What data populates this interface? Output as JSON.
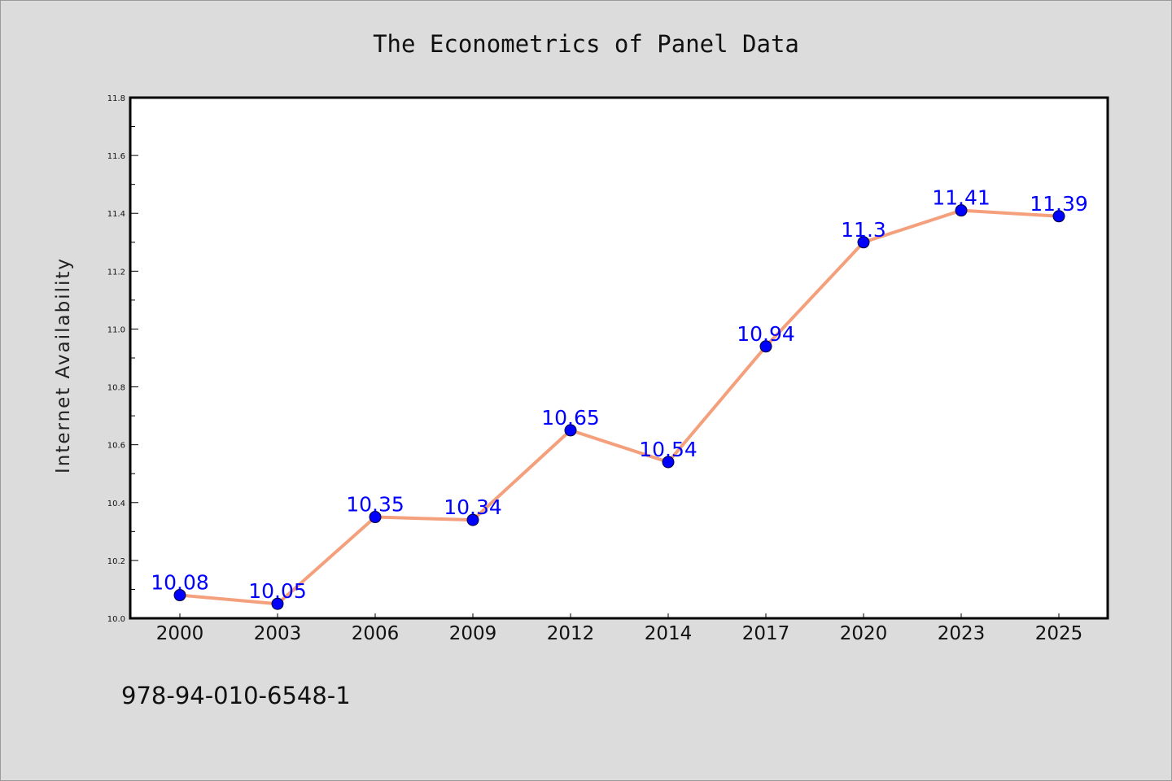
{
  "chart_data": {
    "type": "line",
    "title": "The Econometrics of Panel Data",
    "xlabel": "",
    "ylabel": "Internet Availability",
    "categories": [
      "2000",
      "2003",
      "2006",
      "2009",
      "2012",
      "2014",
      "2017",
      "2020",
      "2023",
      "2025"
    ],
    "series": [
      {
        "values": [
          10.08,
          10.05,
          10.35,
          10.34,
          10.65,
          10.54,
          10.94,
          11.3,
          11.41,
          11.39
        ],
        "labels": [
          "10.08",
          "10.05",
          "10.35",
          "10.34",
          "10.65",
          "10.54",
          "10.94",
          "11.3",
          "11.41",
          "11.39"
        ],
        "line_color": "#f4a07c",
        "marker_color": "#0000ff"
      }
    ],
    "ylim": [
      10.0,
      11.8
    ],
    "yticks": [
      "10.0",
      "10.2",
      "10.4",
      "10.6",
      "10.8",
      "11.0",
      "11.2",
      "11.4",
      "11.6",
      "11.8"
    ],
    "grid": false,
    "background": "#dcdcdc",
    "plot_background": "#ffffff"
  },
  "footer": {
    "isbn": "978-94-010-6548-1"
  }
}
